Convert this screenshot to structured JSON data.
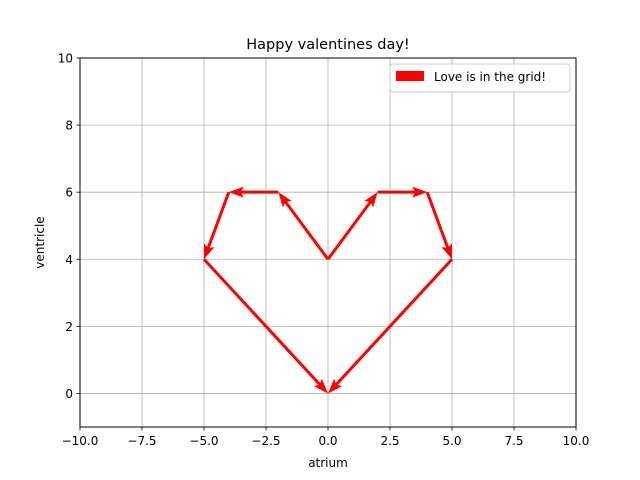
{
  "chart_data": {
    "type": "quiver",
    "title": "Happy valentines day!",
    "xlabel": "atrium",
    "ylabel": "ventricle",
    "xlim": [
      -10,
      10
    ],
    "ylim": [
      -1,
      10
    ],
    "xticks": [
      -10,
      -7.5,
      -5,
      -2.5,
      0,
      2.5,
      5,
      7.5,
      10
    ],
    "xtick_labels": [
      "−10.0",
      "−7.5",
      "−5.0",
      "−2.5",
      "0.0",
      "2.5",
      "5.0",
      "7.5",
      "10.0"
    ],
    "yticks": [
      0,
      2,
      4,
      6,
      8,
      10
    ],
    "ytick_labels": [
      "0",
      "2",
      "4",
      "6",
      "8",
      "10"
    ],
    "grid": true,
    "legend": {
      "position": "top-right",
      "entries": [
        "Love is in the grid!"
      ]
    },
    "color": "#ff0000",
    "arrows": [
      {
        "x": 0,
        "y": 4,
        "dx": 2,
        "dy": 2
      },
      {
        "x": 2,
        "y": 6,
        "dx": 2,
        "dy": 0
      },
      {
        "x": 4,
        "y": 6,
        "dx": 1,
        "dy": -2
      },
      {
        "x": 5,
        "y": 4,
        "dx": -5,
        "dy": -4
      },
      {
        "x": 0,
        "y": 4,
        "dx": -2,
        "dy": 2
      },
      {
        "x": -2,
        "y": 6,
        "dx": -2,
        "dy": 0
      },
      {
        "x": -4,
        "y": 6,
        "dx": -1,
        "dy": -2
      },
      {
        "x": -5,
        "y": 4,
        "dx": 5,
        "dy": -4
      }
    ]
  }
}
